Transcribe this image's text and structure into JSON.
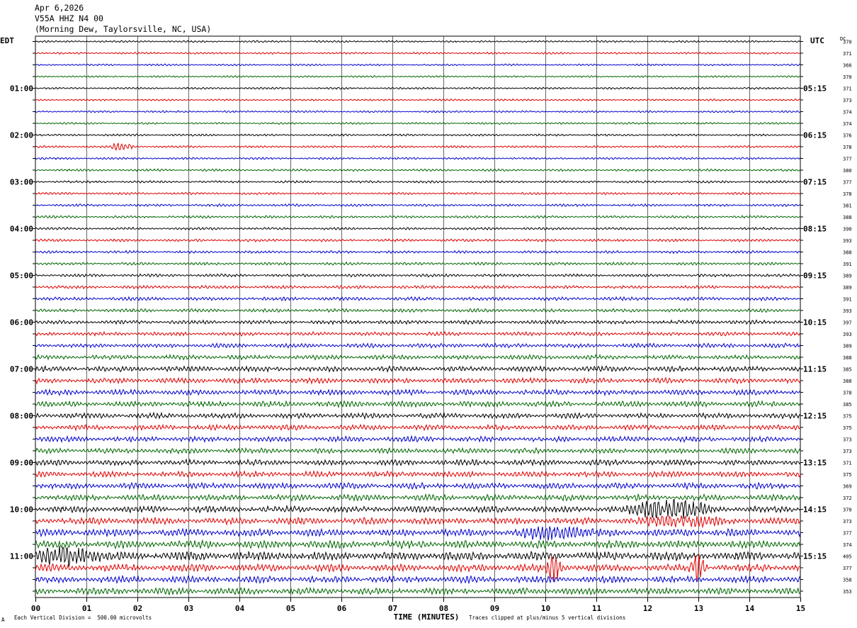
{
  "header": {
    "date": "Apr 6,2026",
    "station": "V55A HHZ N4 00",
    "location": "(Morning Dew, Taylorsville, NC, USA)"
  },
  "left_axis_label": "EDT",
  "right_axis_label": "UTC",
  "dc_label": "DC",
  "footer": {
    "scale_note": "Each Vertical Division =  500.00 microvolts",
    "clip_note": "Traces clipped at plus/minus 5 vertical divisions",
    "corner_mark": "A"
  },
  "colors": {
    "trace_cycle": [
      "#000000",
      "#dd0000",
      "#0000cc",
      "#006600"
    ],
    "grid": "#000000"
  },
  "chart_data": {
    "type": "line",
    "xlabel": "TIME (MINUTES)",
    "x_ticks": [
      "00",
      "01",
      "02",
      "03",
      "04",
      "05",
      "06",
      "07",
      "08",
      "09",
      "10",
      "11",
      "12",
      "13",
      "14",
      "15"
    ],
    "xlim": [
      0,
      15
    ],
    "rows_per_hour": 4,
    "left_hour_labels": [
      "01:00",
      "02:00",
      "03:00",
      "04:00",
      "05:00",
      "06:00",
      "07:00",
      "08:00",
      "09:00",
      "10:00",
      "11:00"
    ],
    "right_hour_labels": [
      "05:15",
      "06:15",
      "07:15",
      "08:15",
      "09:15",
      "10:15",
      "11:15",
      "12:15",
      "13:15",
      "14:15",
      "15:15"
    ],
    "hour_label_first_row": 4,
    "dc_offsets": [
      370,
      371,
      366,
      370,
      371,
      373,
      374,
      374,
      376,
      378,
      377,
      380,
      377,
      378,
      381,
      388,
      390,
      393,
      388,
      391,
      389,
      389,
      391,
      393,
      397,
      393,
      389,
      388,
      385,
      388,
      378,
      385,
      375,
      375,
      373,
      373,
      371,
      375,
      369,
      372,
      370,
      373,
      377,
      374,
      405,
      377,
      358,
      353
    ],
    "row_activity": [
      0.55,
      0.55,
      0.5,
      0.5,
      0.55,
      0.55,
      0.55,
      0.55,
      0.6,
      0.6,
      0.6,
      0.65,
      0.65,
      0.65,
      0.7,
      0.7,
      0.7,
      0.75,
      0.75,
      0.8,
      0.85,
      0.9,
      1.0,
      1.0,
      1.1,
      1.1,
      1.2,
      1.3,
      1.5,
      1.5,
      1.5,
      1.6,
      1.5,
      1.5,
      1.5,
      1.5,
      1.6,
      1.6,
      1.7,
      1.7,
      1.8,
      1.9,
      2.1,
      2.2,
      2.4,
      2.1,
      1.9,
      1.9
    ],
    "events": [
      {
        "row": 9,
        "start_min": 1.45,
        "end_min": 1.95,
        "amp_div": 1.2
      },
      {
        "row": 40,
        "start_min": 11.5,
        "end_min": 13.3,
        "amp_div": 3.0
      },
      {
        "row": 41,
        "start_min": 11.8,
        "end_min": 13.5,
        "amp_div": 1.4
      },
      {
        "row": 42,
        "start_min": 9.4,
        "end_min": 11.0,
        "amp_div": 1.6
      },
      {
        "row": 44,
        "start_min": 0.0,
        "end_min": 1.4,
        "amp_div": 2.6
      },
      {
        "row": 45,
        "start_min": 12.8,
        "end_min": 13.2,
        "amp_div": 4.0
      },
      {
        "row": 45,
        "start_min": 10.0,
        "end_min": 10.35,
        "amp_div": 5.0
      }
    ]
  }
}
